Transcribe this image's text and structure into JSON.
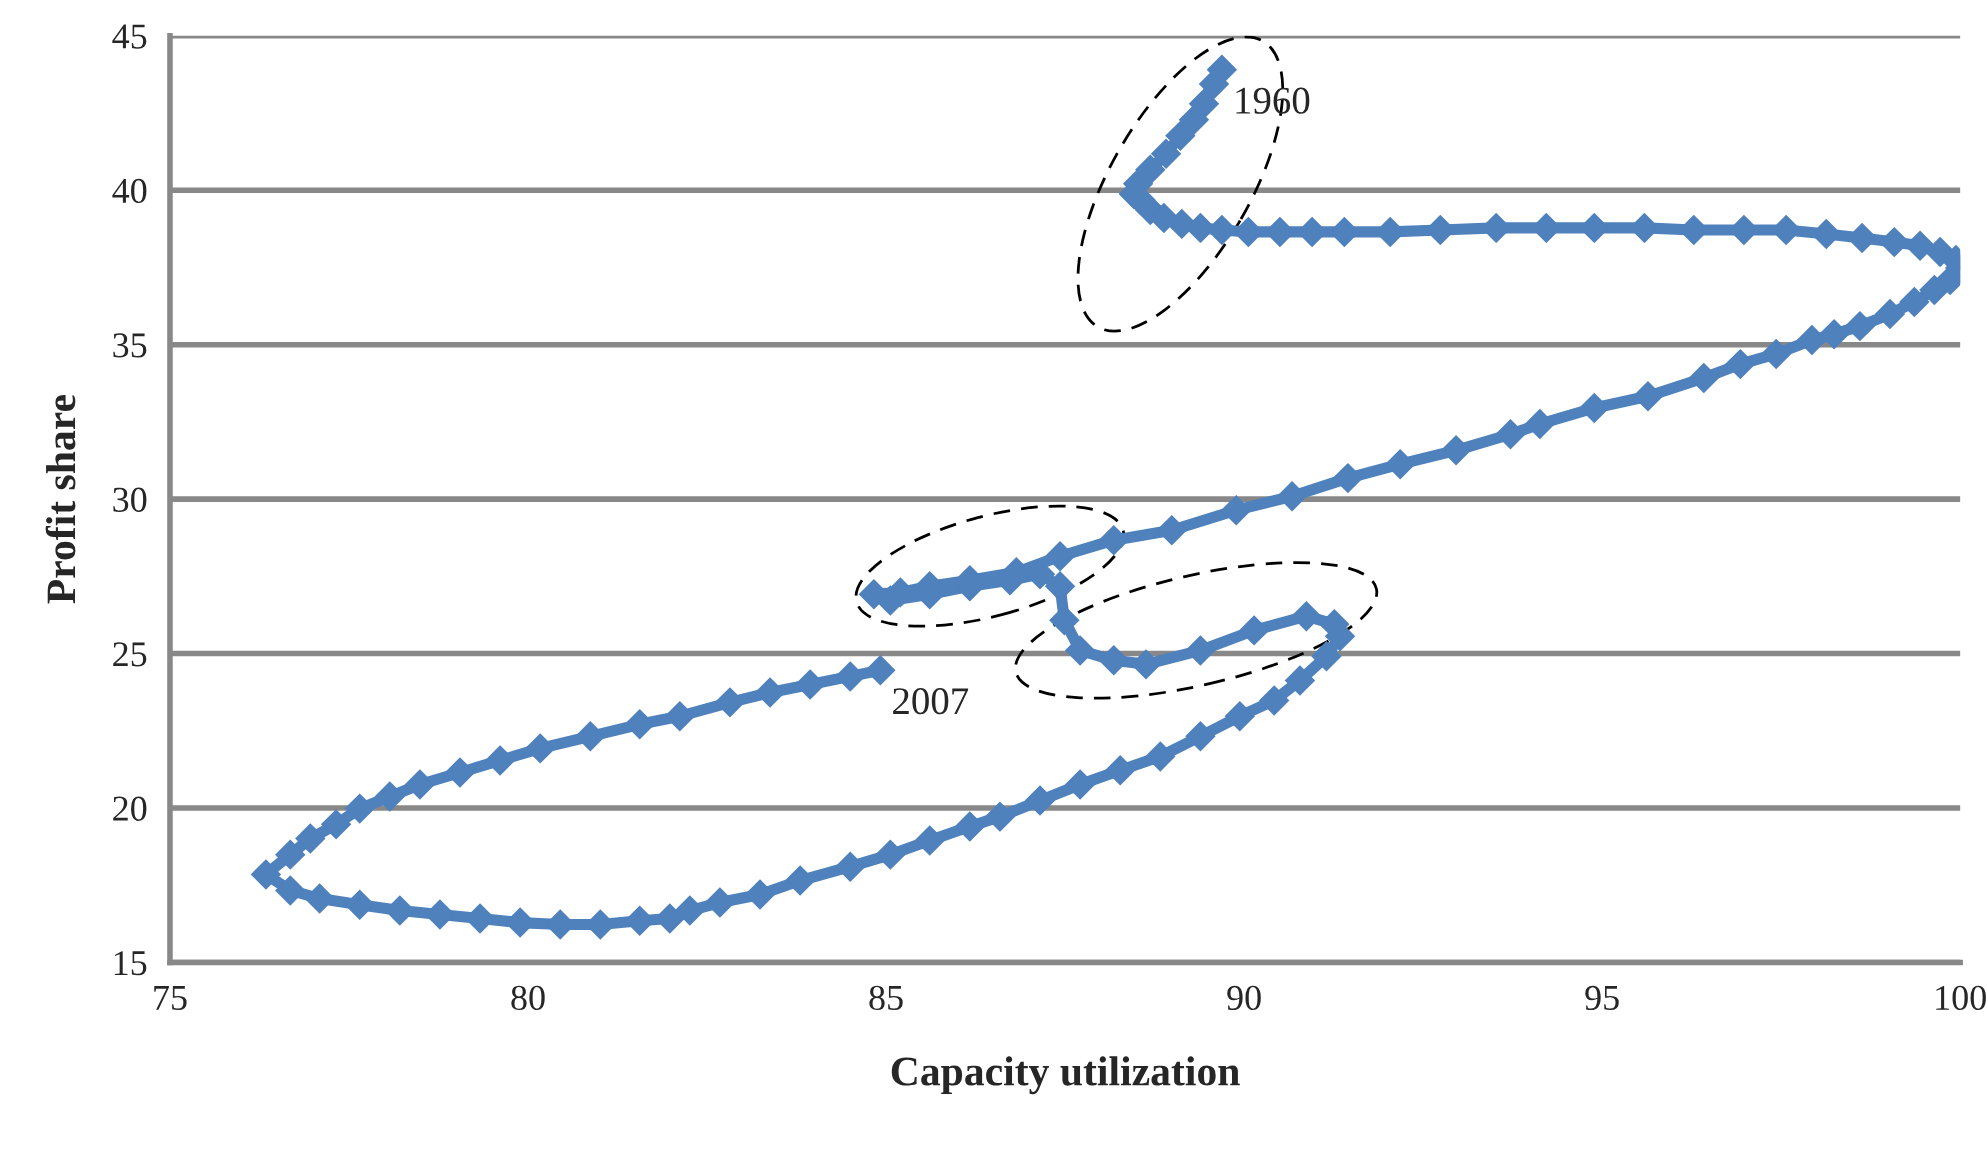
{
  "chart_data": {
    "type": "line",
    "xlabel": "Capacity utilization",
    "ylabel": "Profit share",
    "xlim": [
      75,
      100
    ],
    "xticks": [
      75,
      80,
      85,
      90,
      95,
      100
    ],
    "ylim": [
      15,
      45
    ],
    "yticks": [
      15,
      20,
      25,
      30,
      35,
      40,
      45
    ],
    "grid": "y",
    "marker": "diamond",
    "line_style": "solid",
    "annotations": [
      {
        "text": "1960",
        "x": 89.69,
        "y": 43.9
      },
      {
        "text": "2007",
        "x": 84.92,
        "y": 24.46
      }
    ],
    "series": [
      {
        "color": "#4f81bd",
        "x": [
          89.69,
          89.58,
          89.44,
          89.3,
          89.11,
          88.91,
          88.69,
          88.52,
          88.46,
          88.55,
          88.69,
          88.88,
          89.13,
          89.39,
          89.69,
          90.06,
          90.5,
          90.95,
          91.4,
          92.04,
          92.74,
          93.52,
          94.22,
          94.89,
          95.59,
          96.28,
          96.98,
          97.57,
          98.13,
          98.63,
          99.08,
          99.44,
          99.72,
          99.94,
          100.0,
          99.86,
          99.64,
          99.36,
          99.02,
          98.6,
          98.24,
          97.93,
          97.43,
          96.93,
          96.42,
          95.64,
          94.89,
          94.13,
          93.72,
          92.96,
          92.18,
          91.45,
          90.67,
          89.89,
          88.99,
          88.18,
          87.43,
          86.82,
          86.17,
          85.61,
          85.2,
          84.83,
          85.06,
          85.61,
          86.17,
          86.73,
          87.15,
          87.43,
          87.49,
          87.71,
          88.18,
          88.63,
          89.39,
          90.14,
          90.87,
          91.26,
          91.34,
          91.15,
          90.78,
          90.42,
          89.94,
          89.39,
          88.83,
          88.27,
          87.71,
          87.15,
          86.59,
          86.17,
          85.61,
          85.06,
          84.5,
          83.8,
          83.24,
          82.68,
          82.26,
          81.98,
          81.56,
          81.01,
          80.45,
          79.89,
          79.33,
          78.77,
          78.21,
          77.65,
          77.09,
          76.68,
          76.34,
          76.68,
          76.96,
          77.32,
          77.65,
          78.07,
          78.49,
          79.05,
          79.61,
          80.17,
          80.87,
          81.56,
          82.12,
          82.82,
          83.38,
          83.94,
          84.5,
          84.92
        ],
        "values": [
          43.9,
          43.44,
          42.8,
          42.28,
          41.76,
          41.18,
          40.66,
          40.21,
          39.88,
          39.69,
          39.36,
          39.1,
          38.91,
          38.78,
          38.71,
          38.65,
          38.65,
          38.65,
          38.65,
          38.65,
          38.71,
          38.78,
          38.78,
          38.78,
          38.78,
          38.71,
          38.71,
          38.71,
          38.58,
          38.45,
          38.32,
          38.2,
          38.0,
          37.74,
          37.48,
          37.09,
          36.77,
          36.38,
          35.99,
          35.6,
          35.34,
          35.15,
          34.7,
          34.37,
          33.92,
          33.33,
          32.95,
          32.43,
          32.1,
          31.58,
          31.13,
          30.68,
          30.09,
          29.64,
          28.99,
          28.67,
          28.15,
          27.63,
          27.37,
          27.18,
          26.98,
          26.92,
          26.72,
          26.92,
          27.18,
          27.37,
          27.57,
          27.18,
          26.08,
          25.1,
          24.78,
          24.65,
          25.1,
          25.75,
          26.21,
          25.95,
          25.56,
          24.91,
          24.13,
          23.48,
          22.97,
          22.32,
          21.67,
          21.22,
          20.76,
          20.24,
          19.72,
          19.4,
          18.95,
          18.49,
          18.1,
          17.65,
          17.2,
          16.94,
          16.68,
          16.42,
          16.35,
          16.23,
          16.23,
          16.29,
          16.42,
          16.55,
          16.68,
          16.87,
          17.07,
          17.33,
          17.85,
          18.49,
          19.01,
          19.47,
          19.98,
          20.37,
          20.76,
          21.15,
          21.54,
          21.93,
          22.32,
          22.71,
          22.97,
          23.42,
          23.74,
          24.0,
          24.26,
          24.46
        ]
      }
    ]
  }
}
